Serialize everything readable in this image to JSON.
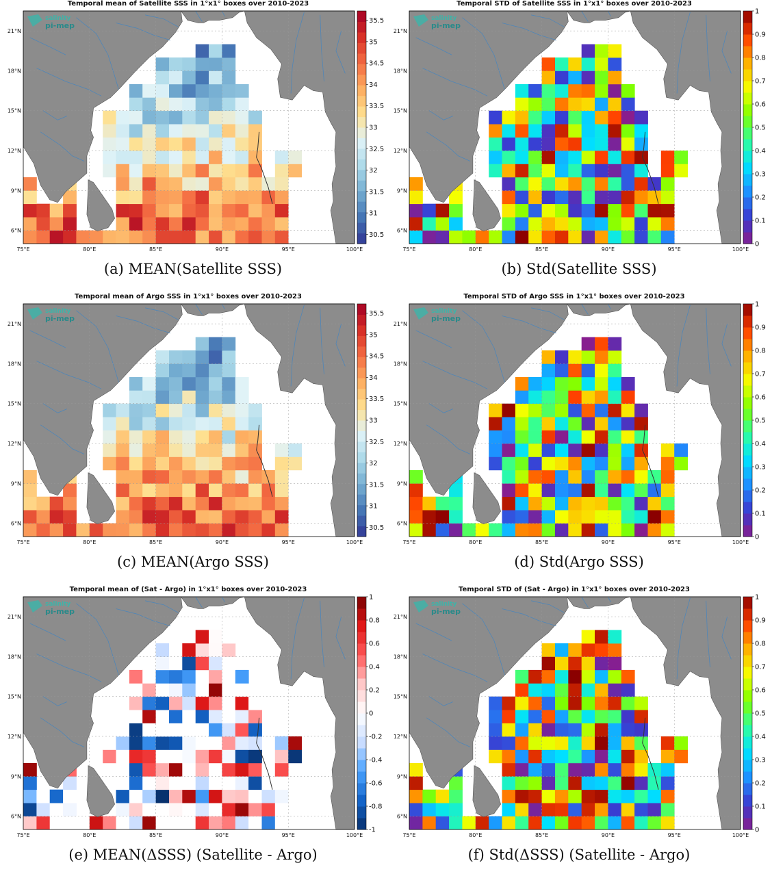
{
  "figure": {
    "logo": {
      "line1": "salinity",
      "line2": "pi-mep"
    },
    "panels": [
      {
        "id": "a",
        "title": "Temporal mean of Satellite SSS in 1°x1° boxes over 2010-2023",
        "caption": "(a) MEAN(Satellite SSS)",
        "colorbar": "sss",
        "colorbar_ticks": [
          "35.5",
          "35",
          "34.5",
          "34",
          "33.5",
          "33",
          "32.5",
          "32",
          "31.5",
          "31",
          "30.5"
        ]
      },
      {
        "id": "b",
        "title": "Temporal STD of Satellite SSS in 1°x1° boxes over 2010-2023",
        "caption": "(b) Std(Satellite SSS)",
        "colorbar": "jet",
        "colorbar_ticks": [
          "1",
          "0.9",
          "0.8",
          "0.7",
          "0.6",
          "0.5",
          "0.4",
          "0.3",
          "0.2",
          "0.1",
          "0"
        ]
      },
      {
        "id": "c",
        "title": "Temporal mean of Argo SSS in 1°x1° boxes over 2010-2023",
        "caption": "(c) MEAN(Argo SSS)",
        "colorbar": "sss",
        "colorbar_ticks": [
          "35.5",
          "35",
          "34.5",
          "34",
          "33.5",
          "33",
          "32.5",
          "32",
          "31.5",
          "31",
          "30.5"
        ]
      },
      {
        "id": "d",
        "title": "Temporal STD of Argo SSS in 1°x1° boxes over 2010-2023",
        "caption": "(d) Std(Argo SSS)",
        "colorbar": "jet",
        "colorbar_ticks": [
          "1",
          "0.9",
          "0.8",
          "0.7",
          "0.6",
          "0.5",
          "0.4",
          "0.3",
          "0.2",
          "0.1",
          "0"
        ]
      },
      {
        "id": "e",
        "title": "Temporal mean of (Sat - Argo) in 1°x1° boxes over 2010-2023",
        "caption": "(e) MEAN(ΔSSS) (Satellite - Argo)",
        "colorbar": "div",
        "colorbar_ticks": [
          "1",
          "0.8",
          "0.6",
          "0.4",
          "0.2",
          "0",
          "-0.2",
          "-0.4",
          "-0.6",
          "-0.8",
          "-1"
        ]
      },
      {
        "id": "f",
        "title": "Temporal STD of (Sat - Argo) in 1°x1° boxes over 2010-2023",
        "caption": "(f) Std(ΔSSS) (Satellite - Argo)",
        "colorbar": "jet",
        "colorbar_ticks": [
          "1",
          "0.9",
          "0.8",
          "0.7",
          "0.6",
          "0.5",
          "0.4",
          "0.3",
          "0.2",
          "0.1",
          "0"
        ]
      }
    ],
    "x_ticks": [
      "75°E",
      "80°E",
      "85°E",
      "90°E",
      "95°E",
      "100°E"
    ],
    "y_ticks": [
      "21°N",
      "18°N",
      "15°N",
      "12°N",
      "9°N",
      "6°N"
    ],
    "lon_range": [
      75,
      100
    ],
    "lat_range": [
      5,
      22.5
    ],
    "colors": {
      "land": "#8c8c8c",
      "rivers": "#4f86b8",
      "sea": "#ffffff",
      "frame": "#000000"
    }
  }
}
